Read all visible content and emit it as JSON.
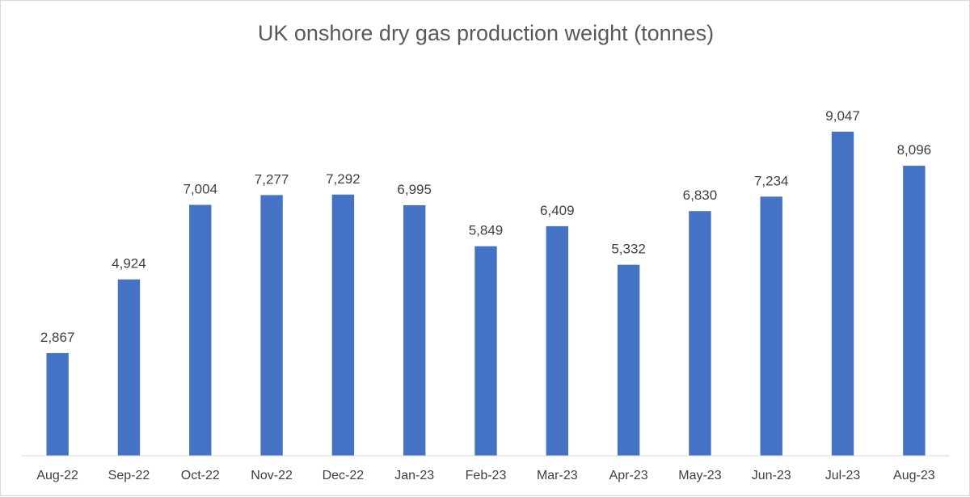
{
  "chart_data": {
    "type": "bar",
    "title": "UK onshore dry gas production weight (tonnes)",
    "categories": [
      "Aug-22",
      "Sep-22",
      "Oct-22",
      "Nov-22",
      "Dec-22",
      "Jan-23",
      "Feb-23",
      "Mar-23",
      "Apr-23",
      "May-23",
      "Jun-23",
      "Jul-23",
      "Aug-23"
    ],
    "values": [
      2867,
      4924,
      7004,
      7277,
      7292,
      6995,
      5849,
      6409,
      5332,
      6830,
      7234,
      9047,
      8096
    ],
    "data_labels": [
      "2,867",
      "4,924",
      "7,004",
      "7,277",
      "7,292",
      "6,995",
      "5,849",
      "6,409",
      "5,332",
      "6,830",
      "7,234",
      "9,047",
      "8,096"
    ],
    "xlabel": "",
    "ylabel": "",
    "ylim": [
      0,
      10000
    ],
    "grid": false,
    "legend": "none",
    "bar_color": "#4472C4",
    "axis_color": "#d9d9d9"
  }
}
